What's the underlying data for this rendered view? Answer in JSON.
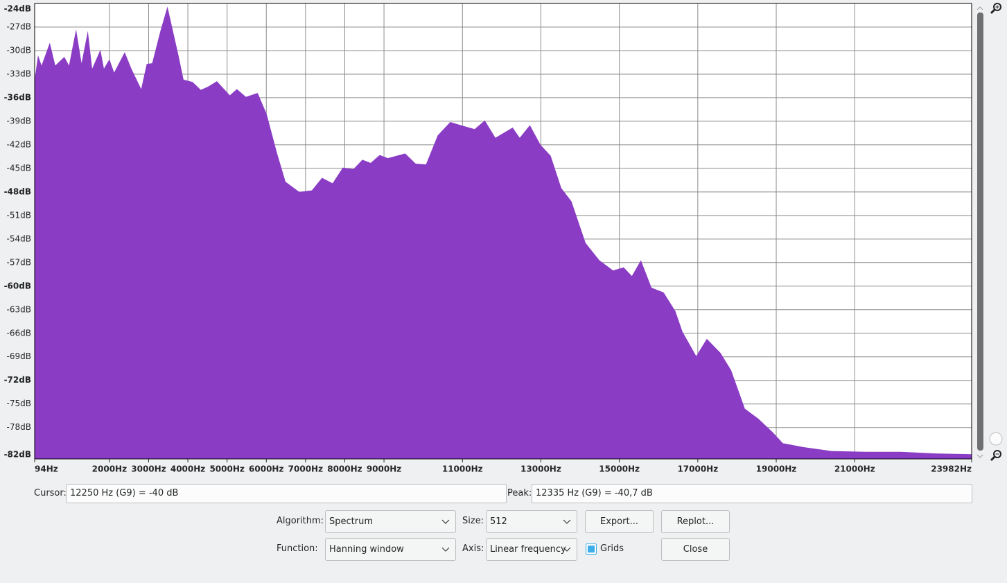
{
  "chart_data": {
    "type": "area",
    "color": "#8a3dc4",
    "grid": true,
    "x": [
      94,
      180,
      270,
      480,
      620,
      850,
      970,
      1150,
      1290,
      1450,
      1560,
      1770,
      1860,
      2000,
      2120,
      2390,
      2560,
      2810,
      2950,
      3090,
      3300,
      3480,
      3620,
      3760,
      3890,
      4120,
      4330,
      4510,
      4740,
      5070,
      5250,
      5480,
      5780,
      6010,
      6270,
      6490,
      6840,
      7160,
      7420,
      7690,
      7950,
      8220,
      8450,
      8660,
      8890,
      9100,
      9540,
      9810,
      10070,
      10370,
      10690,
      10960,
      11310,
      11570,
      11840,
      12280,
      12460,
      12720,
      12990,
      13250,
      13520,
      13780,
      14140,
      14490,
      14840,
      15110,
      15320,
      15550,
      15820,
      16130,
      16430,
      16610,
      16960,
      17230,
      17580,
      17850,
      18200,
      18550,
      18910,
      19170,
      19700,
      20410,
      21290,
      22180,
      23060,
      23982
    ],
    "values": [
      -33.7,
      -30.6,
      -31.9,
      -29.0,
      -31.9,
      -30.8,
      -31.9,
      -27.3,
      -31.6,
      -27.5,
      -32.3,
      -29.9,
      -32.3,
      -31.1,
      -32.8,
      -30.2,
      -32.3,
      -34.9,
      -31.7,
      -31.6,
      -27.5,
      -24.4,
      -27.5,
      -30.6,
      -33.7,
      -34.0,
      -35.0,
      -34.6,
      -33.9,
      -35.7,
      -34.9,
      -35.9,
      -35.4,
      -38.1,
      -43.0,
      -46.7,
      -48.0,
      -47.8,
      -46.2,
      -46.9,
      -44.9,
      -45.1,
      -43.9,
      -44.3,
      -43.3,
      -43.7,
      -43.1,
      -44.4,
      -44.5,
      -40.8,
      -39.1,
      -39.5,
      -40.0,
      -38.9,
      -41.1,
      -39.8,
      -41.1,
      -39.5,
      -42.0,
      -43.4,
      -47.5,
      -49.2,
      -54.5,
      -56.7,
      -58.0,
      -57.6,
      -58.7,
      -56.7,
      -60.2,
      -60.8,
      -63.2,
      -65.8,
      -68.9,
      -66.7,
      -68.5,
      -70.7,
      -75.6,
      -76.9,
      -78.6,
      -80.0,
      -80.5,
      -81.0,
      -81.1,
      -81.1,
      -81.3,
      -81.4
    ],
    "xlim": [
      94,
      23982
    ],
    "ylim": [
      -82,
      -24
    ],
    "xticks": [
      {
        "value": 94,
        "label": "94Hz"
      },
      {
        "value": 2000,
        "label": "2000Hz"
      },
      {
        "value": 3000,
        "label": "3000Hz"
      },
      {
        "value": 4000,
        "label": "4000Hz"
      },
      {
        "value": 5000,
        "label": "5000Hz"
      },
      {
        "value": 6000,
        "label": "6000Hz"
      },
      {
        "value": 7000,
        "label": "7000Hz"
      },
      {
        "value": 8000,
        "label": "8000Hz"
      },
      {
        "value": 9000,
        "label": "9000Hz"
      },
      {
        "value": 11000,
        "label": "11000Hz"
      },
      {
        "value": 13000,
        "label": "13000Hz"
      },
      {
        "value": 15000,
        "label": "15000Hz"
      },
      {
        "value": 17000,
        "label": "17000Hz"
      },
      {
        "value": 19000,
        "label": "19000Hz"
      },
      {
        "value": 21000,
        "label": "21000Hz"
      },
      {
        "value": 23982,
        "label": "23982Hz"
      }
    ],
    "yticks": [
      {
        "value": -24,
        "label": "-24dB"
      },
      {
        "value": -27,
        "label": "-27dB"
      },
      {
        "value": -30,
        "label": "-30dB"
      },
      {
        "value": -33,
        "label": "-33dB"
      },
      {
        "value": -36,
        "label": "-36dB"
      },
      {
        "value": -39,
        "label": "-39dB"
      },
      {
        "value": -42,
        "label": "-42dB"
      },
      {
        "value": -45,
        "label": "-45dB"
      },
      {
        "value": -48,
        "label": "-48dB"
      },
      {
        "value": -51,
        "label": "-51dB"
      },
      {
        "value": -54,
        "label": "-54dB"
      },
      {
        "value": -57,
        "label": "-57dB"
      },
      {
        "value": -60,
        "label": "-60dB"
      },
      {
        "value": -63,
        "label": "-63dB"
      },
      {
        "value": -66,
        "label": "-66dB"
      },
      {
        "value": -69,
        "label": "-69dB"
      },
      {
        "value": -72,
        "label": "-72dB"
      },
      {
        "value": -75,
        "label": "-75dB"
      },
      {
        "value": -78,
        "label": "-78dB"
      },
      {
        "value": -82,
        "label": "-82dB"
      }
    ]
  },
  "controls": {
    "cursor": {
      "label": "Cursor:",
      "value": "12250 Hz (G9) = -40 dB"
    },
    "peak": {
      "label": "Peak:",
      "value": "12335 Hz (G9) = -40,7 dB"
    },
    "algorithm": {
      "label": "Algorithm:",
      "value": "Spectrum"
    },
    "size": {
      "label": "Size:",
      "value": "512"
    },
    "function": {
      "label": "Function:",
      "value": "Hanning window"
    },
    "axis": {
      "label": "Axis:",
      "value": "Linear frequency"
    },
    "grids": {
      "label": "Grids",
      "checked": true
    },
    "export": "Export...",
    "replot": "Replot...",
    "close": "Close"
  }
}
